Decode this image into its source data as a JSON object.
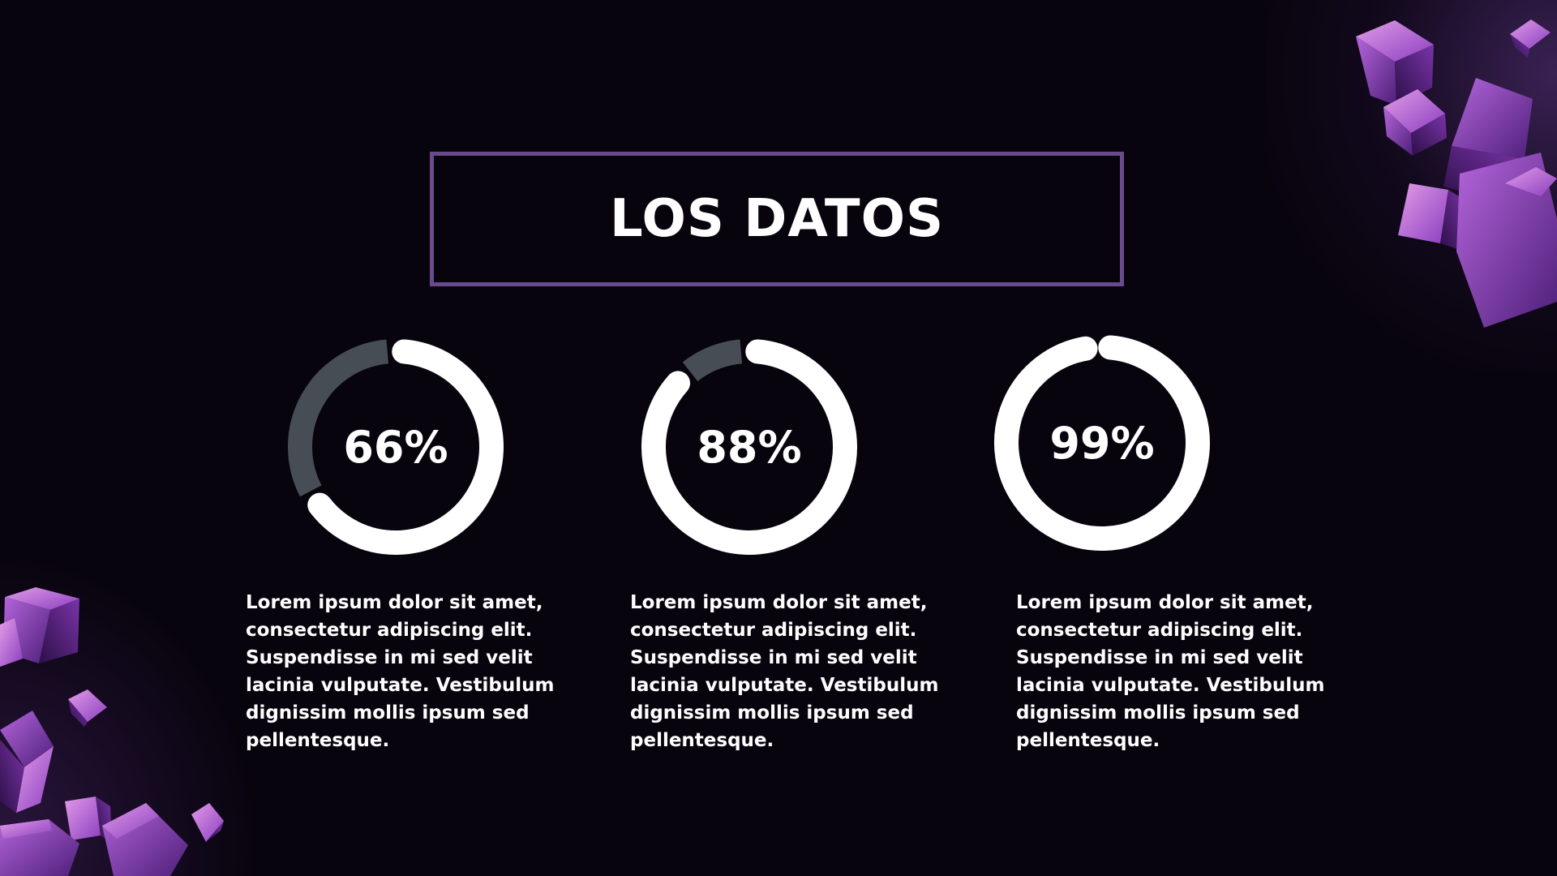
{
  "title": "LOS DATOS",
  "colors": {
    "background": "#08040e",
    "frame": "#6b4a8c",
    "ring_fill": "#ffffff",
    "ring_track": "#474d55",
    "cube": "#9a4fc9"
  },
  "chart_data": [
    {
      "type": "pie",
      "label": "66%",
      "value": 66,
      "max": 100
    },
    {
      "type": "pie",
      "label": "88%",
      "value": 88,
      "max": 100
    },
    {
      "type": "pie",
      "label": "99%",
      "value": 99,
      "max": 100
    }
  ],
  "descriptions": [
    "Lorem ipsum dolor sit amet, consectetur adipiscing elit. Suspendisse in mi sed velit lacinia vulputate. Vestibulum dignissim mollis ipsum sed pellentesque.",
    "Lorem ipsum dolor sit amet, consectetur adipiscing elit. Suspendisse in mi sed velit lacinia vulputate. Vestibulum dignissim mollis ipsum sed pellentesque.",
    "Lorem ipsum dolor sit amet, consectetur adipiscing elit. Suspendisse in mi sed velit lacinia vulputate. Vestibulum dignissim mollis ipsum sed pellentesque."
  ]
}
